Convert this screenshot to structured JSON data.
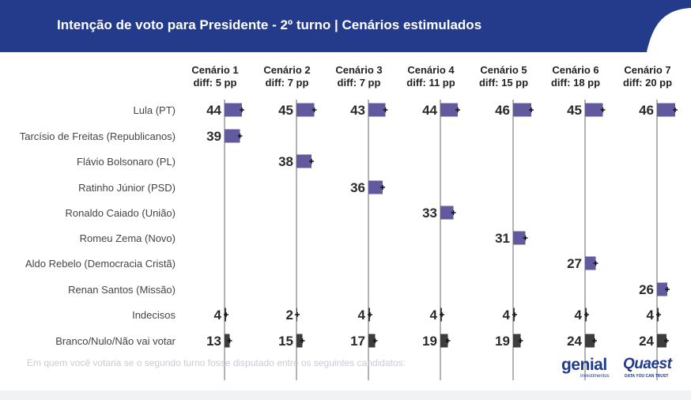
{
  "header": {
    "title": "Intenção de voto para Presidente - 2º turno | Cenários estimulados"
  },
  "colors": {
    "header_bg": "#243b8c",
    "candidate_bar": "#625a9e",
    "other_bar": "#3d3d3d",
    "divider": "#b3b3b3"
  },
  "chart_data": {
    "type": "bar",
    "title": "Intenção de voto para Presidente - 2º turno | Cenários estimulados",
    "categories": [
      "Lula (PT)",
      "Tarcísio de Freitas (Republicanos)",
      "Flávio Bolsonaro (PL)",
      "Ratinho Júnior (PSD)",
      "Ronaldo Caiado (União)",
      "Romeu Zema (Novo)",
      "Aldo Rebelo (Democracia Cristã)",
      "Renan Santos (Missão)",
      "Indecisos",
      "Branco/Nulo/Não vai votar"
    ],
    "scenarios": [
      {
        "name": "Cenário 1",
        "diff": "diff: 5 pp",
        "values": [
          44,
          39,
          null,
          null,
          null,
          null,
          null,
          null,
          4,
          13
        ]
      },
      {
        "name": "Cenário 2",
        "diff": "diff: 7 pp",
        "values": [
          45,
          null,
          38,
          null,
          null,
          null,
          null,
          null,
          2,
          15
        ]
      },
      {
        "name": "Cenário 3",
        "diff": "diff: 7 pp",
        "values": [
          43,
          null,
          null,
          36,
          null,
          null,
          null,
          null,
          4,
          17
        ]
      },
      {
        "name": "Cenário 4",
        "diff": "diff: 11 pp",
        "values": [
          44,
          null,
          null,
          null,
          33,
          null,
          null,
          null,
          4,
          19
        ]
      },
      {
        "name": "Cenário 5",
        "diff": "diff: 15 pp",
        "values": [
          46,
          null,
          null,
          null,
          null,
          31,
          null,
          null,
          4,
          19
        ]
      },
      {
        "name": "Cenário 6",
        "diff": "diff: 18 pp",
        "values": [
          45,
          null,
          null,
          null,
          null,
          null,
          27,
          null,
          4,
          24
        ]
      },
      {
        "name": "Cenário 7",
        "diff": "diff: 20 pp",
        "values": [
          46,
          null,
          null,
          null,
          null,
          null,
          null,
          26,
          4,
          24
        ]
      }
    ],
    "error_bars": true
  },
  "footer": {
    "note": "Em quem você votaria se o segundo turno fosse disputado entre os seguintes candidatos:"
  },
  "logos": {
    "genial": {
      "word": "genial",
      "sub": "investimentos"
    },
    "quaest": {
      "word": "Quaest",
      "sub": "DATA YOU CAN TRUST"
    }
  }
}
